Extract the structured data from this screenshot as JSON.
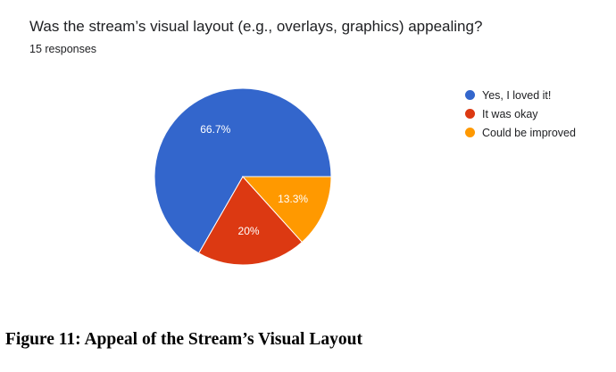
{
  "question": {
    "title": "Was the stream’s visual layout (e.g., overlays, graphics) appealing?",
    "responses": "15 responses"
  },
  "chart_data": {
    "type": "pie",
    "categories": [
      "Yes, I loved it!",
      "It was okay",
      "Could be improved"
    ],
    "values": [
      66.7,
      20,
      13.3
    ],
    "labels": [
      "66.7%",
      "20%",
      "13.3%"
    ],
    "colors": [
      "#3366cc",
      "#dc3912",
      "#ff9900"
    ],
    "legend_position": "right"
  },
  "caption": "Figure 11: Appeal of the Stream’s Visual Layout"
}
